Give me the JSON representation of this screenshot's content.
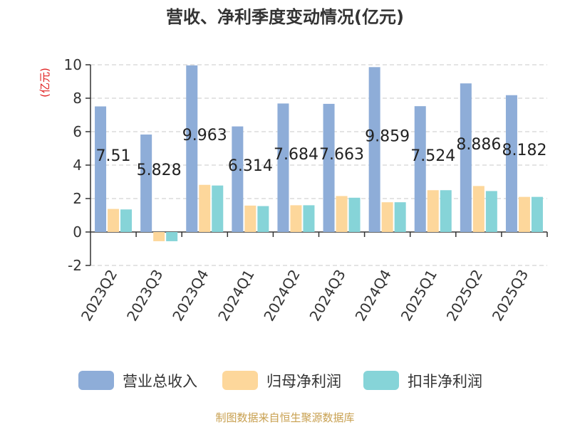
{
  "chart_data": {
    "type": "bar",
    "title": "营收、净利季度变动情况(亿元)",
    "ylabel": "(亿元)",
    "categories": [
      "2023Q2",
      "2023Q3",
      "2023Q4",
      "2024Q1",
      "2024Q2",
      "2024Q3",
      "2024Q4",
      "2025Q1",
      "2025Q2",
      "2025Q3"
    ],
    "series": [
      {
        "name": "营业总收入",
        "color": "#8eadd8",
        "values": [
          7.51,
          5.828,
          9.963,
          6.314,
          7.684,
          7.663,
          9.859,
          7.524,
          8.886,
          8.182
        ],
        "labels": [
          "7.51",
          "5.828",
          "9.963",
          "6.314",
          "7.684",
          "7.663",
          "9.859",
          "7.524",
          "8.886",
          "8.182"
        ]
      },
      {
        "name": "归母净利润",
        "color": "#fdd79b",
        "values": [
          1.38,
          -0.55,
          2.82,
          1.58,
          1.6,
          2.15,
          1.78,
          2.5,
          2.75,
          2.1
        ]
      },
      {
        "name": "扣非净利润",
        "color": "#86d4d8",
        "values": [
          1.35,
          -0.55,
          2.78,
          1.55,
          1.6,
          2.05,
          1.78,
          2.5,
          2.45,
          2.1
        ]
      }
    ],
    "yticks": [
      -2,
      0,
      2,
      4,
      6,
      8,
      10
    ],
    "ylim": [
      -2,
      10
    ],
    "grid": true,
    "legend_position": "bottom"
  },
  "source_text": "制图数据来自恒生聚源数据库"
}
